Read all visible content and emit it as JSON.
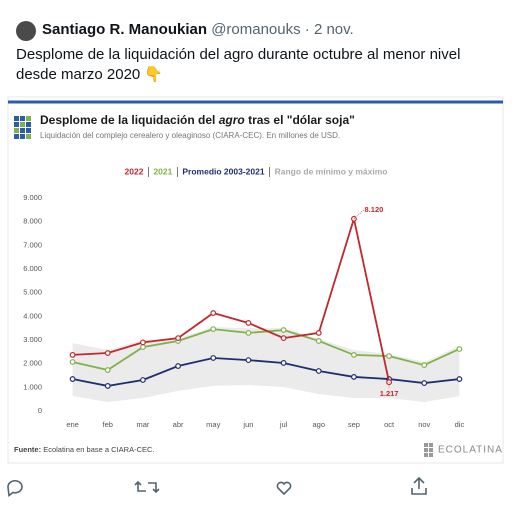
{
  "tweet": {
    "name": "Santiago R. Manoukian",
    "handle": "@romanouks",
    "date": "· 2 nov.",
    "text": "Desplome de la liquidación del agro durante octubre al menor nivel desde marzo 2020 👇"
  },
  "chart_data": {
    "type": "line",
    "title_parts": [
      "Desplome de la liquidación del ",
      "agro",
      " tras el \"dólar soja\""
    ],
    "subtitle": "Liquidación del complejo cerealero y oleaginoso (CIARA-CEC). En millones de USD.",
    "source_label": "Fuente:",
    "source": "Ecolatina en base a CIARA-CEC.",
    "logo": "ECOLATINA",
    "categories": [
      "ene",
      "feb",
      "mar",
      "abr",
      "may",
      "jun",
      "jul",
      "ago",
      "sep",
      "oct",
      "nov",
      "dic"
    ],
    "series": [
      {
        "name": "2022",
        "color": "#c0282d",
        "values": [
          2370,
          2450,
          2900,
          3080,
          4140,
          3720,
          3080,
          3300,
          8120,
          1217,
          null,
          null
        ],
        "value_labels": [
          null,
          null,
          null,
          null,
          null,
          null,
          null,
          null,
          "8.120",
          "1.217",
          null,
          null
        ]
      },
      {
        "name": "2021",
        "color": "#7fb24a",
        "values": [
          2070,
          1730,
          2700,
          2960,
          3460,
          3300,
          3420,
          2960,
          2370,
          2320,
          1940,
          2620
        ]
      },
      {
        "name": "Promedio 2003-2021",
        "color": "#1f2e6e",
        "values": [
          1350,
          1060,
          1310,
          1900,
          2240,
          2150,
          2030,
          1690,
          1440,
          1350,
          1180,
          1350
        ]
      }
    ],
    "band": {
      "name": "Rango de mínimo y máximo",
      "color": "#ebebeb",
      "high": [
        2870,
        2580,
        3000,
        3080,
        3550,
        3500,
        3500,
        3040,
        2580,
        2410,
        2070,
        2750
      ],
      "low": [
        630,
        380,
        550,
        850,
        1060,
        1100,
        1010,
        720,
        550,
        550,
        380,
        630
      ]
    },
    "ylim": [
      0,
      9000
    ],
    "yticks": [
      0,
      {
        "value": 1000,
        "label": "1.000"
      },
      {
        "value": 2000,
        "label": "2.000"
      },
      {
        "value": 3000,
        "label": "3.000"
      },
      {
        "value": 4000,
        "label": "4.000"
      },
      {
        "value": 5000,
        "label": "5.000"
      },
      {
        "value": 6000,
        "label": "6.000"
      },
      {
        "value": 7000,
        "label": "7.000"
      },
      {
        "value": 8000,
        "label": "8.000"
      },
      {
        "value": 9000,
        "label": "9.000"
      }
    ],
    "grid": false
  }
}
